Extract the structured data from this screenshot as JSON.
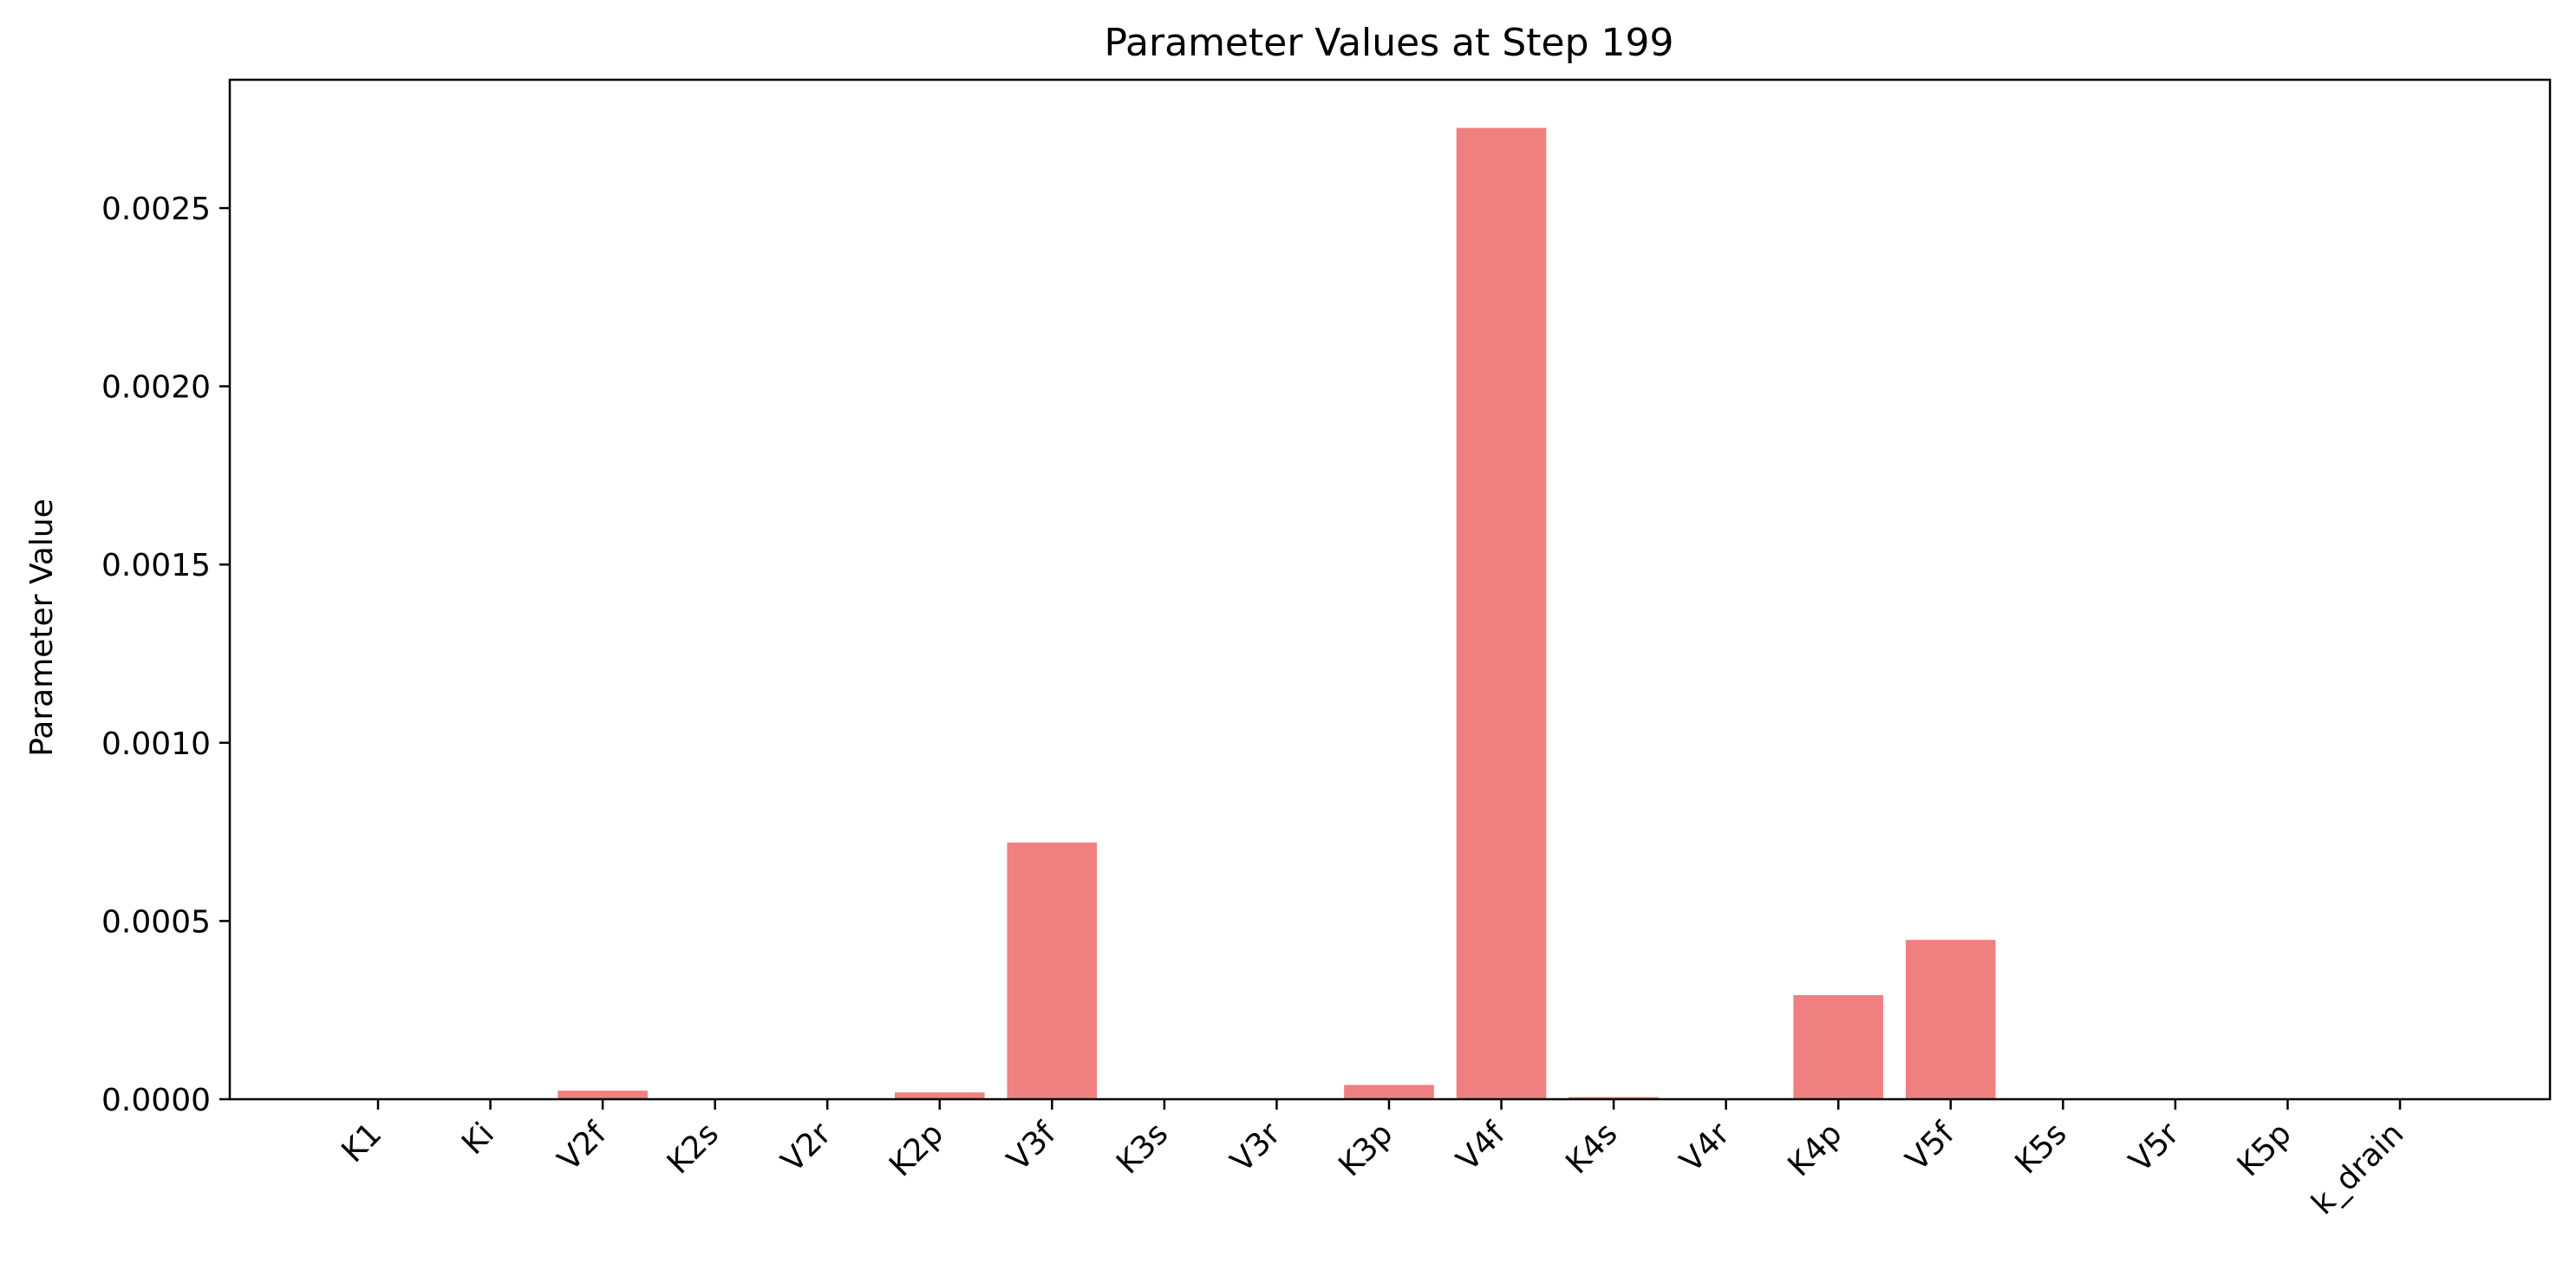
{
  "chart_data": {
    "type": "bar",
    "title": "Parameter Values at Step 199",
    "xlabel": "",
    "ylabel": "Parameter Value",
    "categories": [
      "K1",
      "Ki",
      "V2f",
      "K2s",
      "V2r",
      "K2p",
      "V3f",
      "K3s",
      "V3r",
      "K3p",
      "V4f",
      "K4s",
      "V4r",
      "K4p",
      "V5f",
      "K5s",
      "V5r",
      "K5p",
      "k_drain"
    ],
    "values": [
      0.0,
      0.0,
      2.4e-05,
      0.0,
      0.0,
      1.9e-05,
      0.00072,
      0.0,
      0.0,
      4e-05,
      0.002725,
      6e-06,
      0.0,
      0.000292,
      0.000447,
      0.0,
      0.0,
      0.0,
      0.0
    ],
    "yticks": [
      "0.0000",
      "0.0005",
      "0.0010",
      "0.0015",
      "0.0020",
      "0.0025"
    ],
    "ytick_values": [
      0.0,
      0.0005,
      0.001,
      0.0015,
      0.002,
      0.0025
    ],
    "ylim": [
      0,
      0.00286
    ],
    "bar_color": "#f08080",
    "grid": false,
    "legend": "none"
  }
}
